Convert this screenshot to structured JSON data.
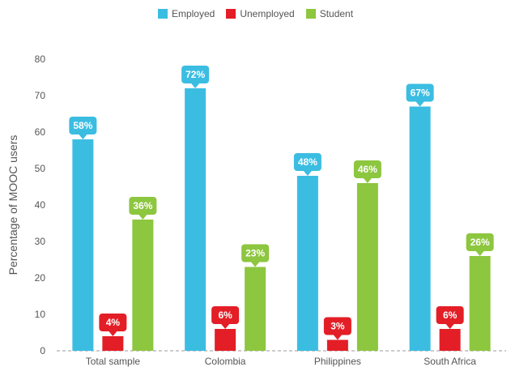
{
  "colors": {
    "Employed": "#3bbde2",
    "Unemployed": "#e31e26",
    "Student": "#8dc63f",
    "axis": "#9a9a9a",
    "text": "#555555"
  },
  "chart_data": {
    "type": "bar",
    "ylabel": "Percentage of MOOC users",
    "xlabel": "",
    "ylim": [
      0,
      80
    ],
    "yticks": [
      0,
      10,
      20,
      30,
      40,
      50,
      60,
      70,
      80
    ],
    "grid": false,
    "legend_position": "top-center",
    "categories": [
      "Total sample",
      "Colombia",
      "Philippines",
      "South Africa"
    ],
    "series": [
      {
        "name": "Employed",
        "values": [
          58,
          72,
          48,
          67
        ],
        "labels": [
          "58%",
          "72%",
          "48%",
          "67%"
        ]
      },
      {
        "name": "Unemployed",
        "values": [
          4,
          6,
          3,
          6
        ],
        "labels": [
          "4%",
          "6%",
          "3%",
          "6%"
        ]
      },
      {
        "name": "Student",
        "values": [
          36,
          23,
          46,
          26
        ],
        "labels": [
          "36%",
          "23%",
          "46%",
          "26%"
        ]
      }
    ]
  }
}
